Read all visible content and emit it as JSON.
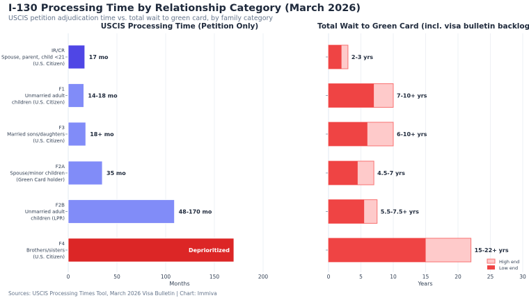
{
  "title": "I-130 Processing Time by Relationship Category (March 2026)",
  "subtitle": "USCIS petition adjudication time vs. total wait to green card, by family category",
  "source": "Sources: USCIS Processing Times Tool, March 2026 Visa Bulletin | Chart: Immiva",
  "chart_data": [
    {
      "type": "bar",
      "orientation": "horizontal",
      "title": "USCIS Processing Time (Petition Only)",
      "xlabel": "Months",
      "xlim": [
        0,
        230
      ],
      "xticks": [
        0,
        50,
        100,
        150,
        200
      ],
      "grid": true,
      "categories": [
        [
          "IR/CR",
          "Spouse, parent, child <21",
          "(U.S. Citizen)"
        ],
        [
          "F1",
          "Unmarried adult",
          "children (U.S. Citizen)"
        ],
        [
          "F3",
          "Married sons/daughters",
          "(U.S. Citizen)"
        ],
        [
          "F2A",
          "Spouse/minor children",
          "(Green Card holder)"
        ],
        [
          "F2B",
          "Unmarried adult",
          "children (LPR)"
        ],
        [
          "F4",
          "Brothers/sisters",
          "(U.S. Citizen)"
        ]
      ],
      "values": [
        17,
        16,
        18,
        35,
        109,
        170
      ],
      "labels": [
        "17 mo",
        "14-18 mo",
        "18+ mo",
        "35 mo",
        "48-170 mo",
        "Deprioritized"
      ],
      "colors": [
        "#4f46e5",
        "#818cf8",
        "#818cf8",
        "#818cf8",
        "#818cf8",
        "#dc2626"
      ]
    },
    {
      "type": "bar",
      "orientation": "horizontal",
      "stacked": "overlay",
      "title": "Total Wait to Green Card (incl. visa bulletin backlog)",
      "xlabel": "Years",
      "xlim": [
        0,
        30
      ],
      "xticks": [
        0,
        5,
        10,
        15,
        20,
        25,
        30
      ],
      "grid": true,
      "legend": "bottom-right",
      "series": [
        {
          "name": "High end",
          "values": [
            3,
            10,
            10,
            7,
            7.5,
            22
          ],
          "color": "#fecaca"
        },
        {
          "name": "Low end",
          "values": [
            2,
            7,
            6,
            4.5,
            5.5,
            15
          ],
          "color": "#ef4444"
        }
      ],
      "labels": [
        "2-3 yrs",
        "7-10+ yrs",
        "6-10+ yrs",
        "4.5-7 yrs",
        "5.5-7.5+ yrs",
        "15-22+ yrs"
      ]
    }
  ]
}
